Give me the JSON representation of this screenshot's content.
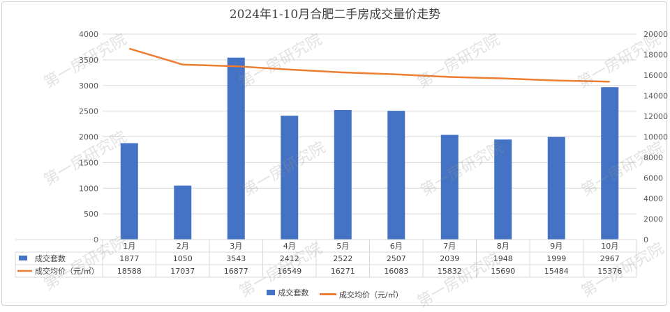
{
  "title": "2024年1-10月合肥二手房成交量价走势",
  "watermark": "第一房研究院",
  "chart_data": {
    "type": "bar",
    "categories": [
      "1月",
      "2月",
      "3月",
      "4月",
      "5月",
      "6月",
      "7月",
      "8月",
      "9月",
      "10月"
    ],
    "series": [
      {
        "name": "成交套数",
        "type": "bar",
        "axis": "left",
        "color": "#4472c4",
        "values": [
          1877,
          1050,
          3543,
          2412,
          2522,
          2507,
          2039,
          1948,
          1999,
          2967
        ]
      },
      {
        "name": "成交均价（元/㎡）",
        "type": "line",
        "axis": "right",
        "color": "#ed7d31",
        "values": [
          18588,
          17037,
          16877,
          16549,
          16271,
          16083,
          15832,
          15690,
          15484,
          15376
        ]
      }
    ],
    "y_left": {
      "min": 0,
      "max": 4000,
      "step": 500
    },
    "y_right": {
      "min": 0,
      "max": 20000,
      "step": 2000
    },
    "legend_position": "bottom",
    "data_table": true,
    "grid": true
  }
}
